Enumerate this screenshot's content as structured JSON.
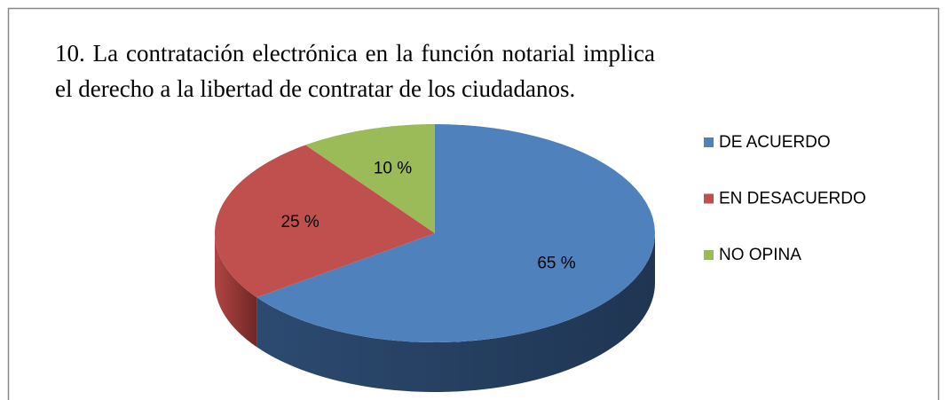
{
  "chart_data": {
    "type": "pie",
    "title": "10. La contratación electrónica en la función notarial implica el derecho a la libertad de contratar de los ciudadanos.",
    "categories": [
      "DE ACUERDO",
      "EN DESACUERDO",
      "NO OPINA"
    ],
    "values": [
      65,
      25,
      10
    ],
    "value_labels": [
      "65 %",
      "25 %",
      "10 %"
    ],
    "colors": [
      "#4f81bd",
      "#c0504d",
      "#9bbb59"
    ],
    "legend": "right"
  }
}
